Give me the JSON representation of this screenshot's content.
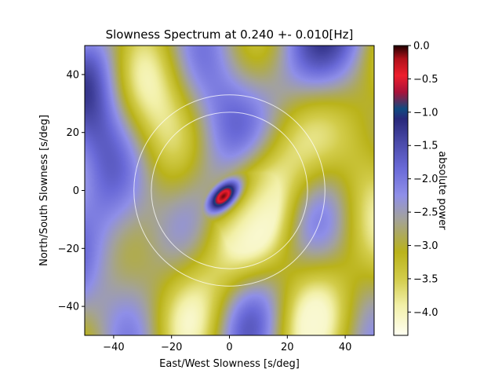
{
  "chart_data": {
    "type": "heatmap",
    "title": "Slowness Spectrum at 0.240 +- 0.010[Hz]",
    "xlabel": "East/West Slowness [s/deg]",
    "ylabel": "North/South Slowness [s/deg]",
    "xlim": [
      -50,
      50
    ],
    "ylim": [
      -50,
      50
    ],
    "xticks": [
      -40,
      -20,
      0,
      20,
      40
    ],
    "yticks": [
      -40,
      -20,
      0,
      20,
      40
    ],
    "grid": false,
    "colorbar": {
      "label": "absolute power",
      "range": [
        -4.35,
        0.0
      ],
      "ticks": [
        0.0,
        -0.5,
        -1.0,
        -1.5,
        -2.0,
        -2.5,
        -3.0,
        -3.5,
        -4.0
      ],
      "colormap": [
        {
          "v": -4.35,
          "color": "#fffff2"
        },
        {
          "v": -3.9,
          "color": "#f2f0a8"
        },
        {
          "v": -3.5,
          "color": "#d2cc4a"
        },
        {
          "v": -3.1,
          "color": "#bab31a"
        },
        {
          "v": -2.85,
          "color": "#aeaa58"
        },
        {
          "v": -2.6,
          "color": "#a3a29c"
        },
        {
          "v": -2.25,
          "color": "#8f8fe8"
        },
        {
          "v": -1.85,
          "color": "#6a6ad8"
        },
        {
          "v": -1.45,
          "color": "#4a4aa8"
        },
        {
          "v": -1.1,
          "color": "#28287a"
        },
        {
          "v": -0.95,
          "color": "#104a80"
        },
        {
          "v": -0.7,
          "color": "#a8123a"
        },
        {
          "v": -0.45,
          "color": "#ee1e2c"
        },
        {
          "v": -0.2,
          "color": "#b0101a"
        },
        {
          "v": 0.0,
          "color": "#200000"
        }
      ]
    },
    "peak": {
      "x": -2,
      "y": -2,
      "power": 0.0
    },
    "circles": [
      {
        "x": 0,
        "y": 0,
        "radius": 27,
        "color": "#ffffff"
      },
      {
        "x": 0,
        "y": 0,
        "radius": 33,
        "color": "#ffffff"
      }
    ]
  }
}
